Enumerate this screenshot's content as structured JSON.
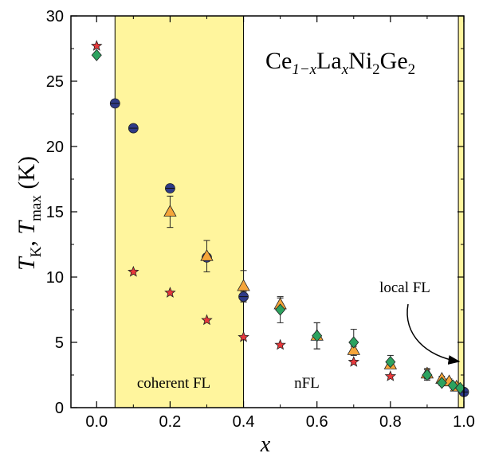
{
  "chart_data": {
    "type": "scatter",
    "title": "Ce1-xLaxNi2Ge2",
    "title_parts": {
      "a": "Ce",
      "b": "1−x",
      "c": "La",
      "d": "x",
      "e": "Ni",
      "f": "2",
      "g": "Ge",
      "h": "2"
    },
    "xlabel": "x",
    "ylabel": {
      "t1": "T",
      "s1": "K",
      "comma": ", ",
      "t2": "T",
      "s2": "max",
      "unit": " (K)"
    },
    "xlim": [
      -0.07,
      1.0
    ],
    "ylim": [
      0,
      30
    ],
    "x_ticks": [
      0.0,
      0.2,
      0.4,
      0.6,
      0.8,
      1.0
    ],
    "x_tick_labels": [
      "0.0",
      "0.2",
      "0.4",
      "0.6",
      "0.8",
      "1.0"
    ],
    "y_ticks": [
      0,
      5,
      10,
      15,
      20,
      25,
      30
    ],
    "y_tick_labels": [
      "0",
      "5",
      "10",
      "15",
      "20",
      "25",
      "30"
    ],
    "grid": false,
    "legend": "none",
    "shaded_regions": [
      {
        "x0": 0.05,
        "x1": 0.4,
        "color": "#fff59d"
      },
      {
        "x0": 0.985,
        "x1": 1.0,
        "color": "#fff59d"
      }
    ],
    "annotations": [
      {
        "text": "coherent FL",
        "x": 0.22,
        "y": 2.0
      },
      {
        "text": "nFL",
        "x": 0.6,
        "y": 2.0
      },
      {
        "text": "local FL",
        "x": 0.88,
        "y": 9.3
      }
    ],
    "series": [
      {
        "marker": "circle",
        "color": "#2e3a87",
        "x": [
          0.05,
          0.1,
          0.2,
          0.3,
          0.4,
          1.0
        ],
        "y": [
          23.3,
          21.4,
          16.8,
          11.5,
          8.5,
          1.2
        ],
        "err": [
          0,
          0,
          0,
          0,
          0.4,
          0
        ]
      },
      {
        "marker": "triangle",
        "color": "#f5a53a",
        "x": [
          0.2,
          0.3,
          0.4,
          0.5,
          0.6,
          0.7,
          0.8,
          0.9,
          0.94,
          0.96,
          0.98
        ],
        "y": [
          15.0,
          11.6,
          9.3,
          7.9,
          5.5,
          4.4,
          3.3,
          2.6,
          2.2,
          2.0,
          1.6
        ],
        "err": [
          1.2,
          1.2,
          1.2,
          0.5,
          1.0,
          0.3,
          0.3,
          0.4,
          0.2,
          0.2,
          0.2
        ]
      },
      {
        "marker": "diamond",
        "color": "#2ca25f",
        "x": [
          0.0,
          0.5,
          0.6,
          0.7,
          0.8,
          0.9,
          0.94,
          0.97,
          0.99
        ],
        "y": [
          27.0,
          7.5,
          5.5,
          5.0,
          3.5,
          2.5,
          1.9,
          1.7,
          1.5
        ],
        "err": [
          0,
          1.0,
          1.0,
          1.0,
          0.5,
          0.4,
          0.2,
          0.2,
          0.2
        ]
      },
      {
        "marker": "star",
        "color": "#e8383b",
        "x": [
          0.0,
          0.1,
          0.2,
          0.3,
          0.4,
          0.5,
          0.7,
          0.8
        ],
        "y": [
          27.7,
          10.4,
          8.8,
          6.7,
          5.4,
          4.8,
          3.5,
          2.4
        ],
        "err": [
          0,
          0,
          0,
          0,
          0,
          0,
          0,
          0
        ]
      }
    ]
  }
}
